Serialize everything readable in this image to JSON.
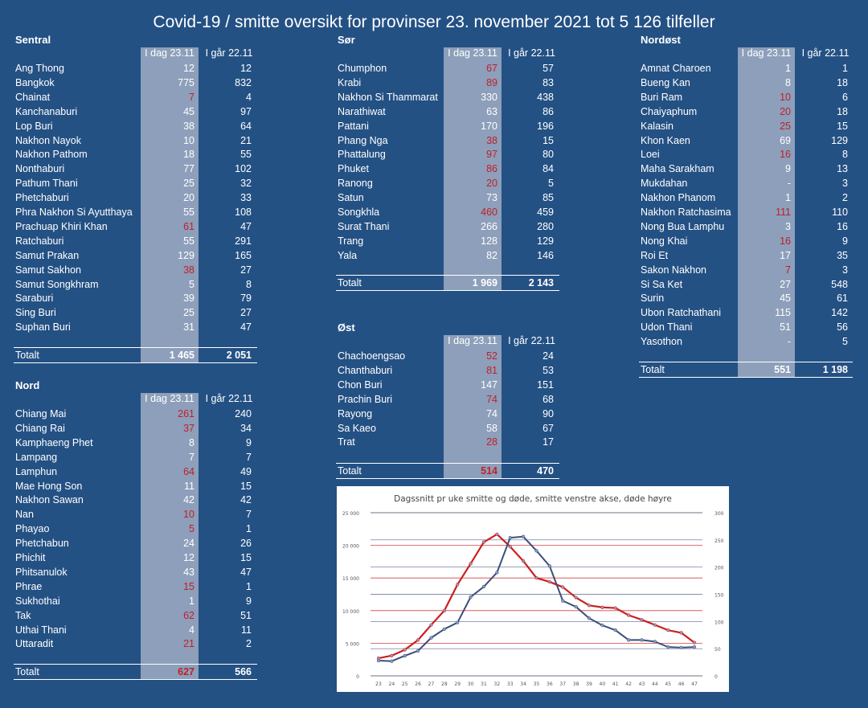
{
  "title": "Covid-19 / smitte oversikt for provinser 23. november 2021 tot 5 126 tilfeller",
  "col_today": "I dag 23.11",
  "col_yesterday": "I går 22.11",
  "total_label": "Totalt",
  "highlight_color": "#c0202a",
  "regions": {
    "sentral": {
      "name": "Sentral",
      "rows": [
        {
          "name": "Ang Thong",
          "today": "12",
          "yesterday": "12",
          "up": false
        },
        {
          "name": "Bangkok",
          "today": "775",
          "yesterday": "832",
          "up": false
        },
        {
          "name": "Chainat",
          "today": "7",
          "yesterday": "4",
          "up": true
        },
        {
          "name": "Kanchanaburi",
          "today": "45",
          "yesterday": "97",
          "up": false
        },
        {
          "name": "Lop Buri",
          "today": "38",
          "yesterday": "64",
          "up": false
        },
        {
          "name": "Nakhon Nayok",
          "today": "10",
          "yesterday": "21",
          "up": false
        },
        {
          "name": "Nakhon Pathom",
          "today": "18",
          "yesterday": "55",
          "up": false
        },
        {
          "name": "Nonthaburi",
          "today": "77",
          "yesterday": "102",
          "up": false
        },
        {
          "name": "Pathum Thani",
          "today": "25",
          "yesterday": "32",
          "up": false
        },
        {
          "name": "Phetchaburi",
          "today": "20",
          "yesterday": "33",
          "up": false
        },
        {
          "name": "Phra Nakhon Si Ayutthaya",
          "today": "55",
          "yesterday": "108",
          "up": false
        },
        {
          "name": "Prachuap Khiri Khan",
          "today": "61",
          "yesterday": "47",
          "up": true
        },
        {
          "name": "Ratchaburi",
          "today": "55",
          "yesterday": "291",
          "up": false
        },
        {
          "name": "Samut Prakan",
          "today": "129",
          "yesterday": "165",
          "up": false
        },
        {
          "name": "Samut Sakhon",
          "today": "38",
          "yesterday": "27",
          "up": true
        },
        {
          "name": "Samut Songkhram",
          "today": "5",
          "yesterday": "8",
          "up": false
        },
        {
          "name": "Saraburi",
          "today": "39",
          "yesterday": "79",
          "up": false
        },
        {
          "name": "Sing Buri",
          "today": "25",
          "yesterday": "27",
          "up": false
        },
        {
          "name": "Suphan Buri",
          "today": "31",
          "yesterday": "47",
          "up": false
        }
      ],
      "total_today": "1 465",
      "total_yesterday": "2 051",
      "total_up": false
    },
    "nord": {
      "name": "Nord",
      "rows": [
        {
          "name": "Chiang Mai",
          "today": "261",
          "yesterday": "240",
          "up": true
        },
        {
          "name": "Chiang Rai",
          "today": "37",
          "yesterday": "34",
          "up": true
        },
        {
          "name": "Kamphaeng Phet",
          "today": "8",
          "yesterday": "9",
          "up": false
        },
        {
          "name": "Lampang",
          "today": "7",
          "yesterday": "7",
          "up": false
        },
        {
          "name": "Lamphun",
          "today": "64",
          "yesterday": "49",
          "up": true
        },
        {
          "name": "Mae Hong Son",
          "today": "11",
          "yesterday": "15",
          "up": false
        },
        {
          "name": "Nakhon Sawan",
          "today": "42",
          "yesterday": "42",
          "up": false
        },
        {
          "name": "Nan",
          "today": "10",
          "yesterday": "7",
          "up": true
        },
        {
          "name": "Phayao",
          "today": "5",
          "yesterday": "1",
          "up": true
        },
        {
          "name": "Phetchabun",
          "today": "24",
          "yesterday": "26",
          "up": false
        },
        {
          "name": "Phichit",
          "today": "12",
          "yesterday": "15",
          "up": false
        },
        {
          "name": "Phitsanulok",
          "today": "43",
          "yesterday": "47",
          "up": false
        },
        {
          "name": "Phrae",
          "today": "15",
          "yesterday": "1",
          "up": true
        },
        {
          "name": "Sukhothai",
          "today": "1",
          "yesterday": "9",
          "up": false
        },
        {
          "name": "Tak",
          "today": "62",
          "yesterday": "51",
          "up": true
        },
        {
          "name": "Uthai Thani",
          "today": "4",
          "yesterday": "11",
          "up": false
        },
        {
          "name": "Uttaradit",
          "today": "21",
          "yesterday": "2",
          "up": true
        }
      ],
      "total_today": "627",
      "total_yesterday": "566",
      "total_up": true
    },
    "sor": {
      "name": "Sør",
      "rows": [
        {
          "name": "Chumphon",
          "today": "67",
          "yesterday": "57",
          "up": true
        },
        {
          "name": "Krabi",
          "today": "89",
          "yesterday": "83",
          "up": true
        },
        {
          "name": "Nakhon Si Thammarat",
          "today": "330",
          "yesterday": "438",
          "up": false
        },
        {
          "name": "Narathiwat",
          "today": "63",
          "yesterday": "86",
          "up": false
        },
        {
          "name": "Pattani",
          "today": "170",
          "yesterday": "196",
          "up": false
        },
        {
          "name": "Phang Nga",
          "today": "38",
          "yesterday": "15",
          "up": true
        },
        {
          "name": "Phattalung",
          "today": "97",
          "yesterday": "80",
          "up": true
        },
        {
          "name": "Phuket",
          "today": "86",
          "yesterday": "84",
          "up": true
        },
        {
          "name": "Ranong",
          "today": "20",
          "yesterday": "5",
          "up": true
        },
        {
          "name": "Satun",
          "today": "73",
          "yesterday": "85",
          "up": false
        },
        {
          "name": "Songkhla",
          "today": "460",
          "yesterday": "459",
          "up": true
        },
        {
          "name": "Surat Thani",
          "today": "266",
          "yesterday": "280",
          "up": false
        },
        {
          "name": "Trang",
          "today": "128",
          "yesterday": "129",
          "up": false
        },
        {
          "name": "Yala",
          "today": "82",
          "yesterday": "146",
          "up": false
        }
      ],
      "total_today": "1 969",
      "total_yesterday": "2 143",
      "total_up": false
    },
    "ost": {
      "name": "Øst",
      "rows": [
        {
          "name": "Chachoengsao",
          "today": "52",
          "yesterday": "24",
          "up": true
        },
        {
          "name": "Chanthaburi",
          "today": "81",
          "yesterday": "53",
          "up": true
        },
        {
          "name": "Chon Buri",
          "today": "147",
          "yesterday": "151",
          "up": false
        },
        {
          "name": "Prachin Buri",
          "today": "74",
          "yesterday": "68",
          "up": true
        },
        {
          "name": "Rayong",
          "today": "74",
          "yesterday": "90",
          "up": false
        },
        {
          "name": "Sa Kaeo",
          "today": "58",
          "yesterday": "67",
          "up": false
        },
        {
          "name": "Trat",
          "today": "28",
          "yesterday": "17",
          "up": true
        }
      ],
      "total_today": "514",
      "total_yesterday": "470",
      "total_up": true
    },
    "nordost": {
      "name": "Nordøst",
      "rows": [
        {
          "name": "Amnat Charoen",
          "today": "1",
          "yesterday": "1",
          "up": false
        },
        {
          "name": "Bueng Kan",
          "today": "8",
          "yesterday": "18",
          "up": false
        },
        {
          "name": "Buri Ram",
          "today": "10",
          "yesterday": "6",
          "up": true
        },
        {
          "name": "Chaiyaphum",
          "today": "20",
          "yesterday": "18",
          "up": true
        },
        {
          "name": "Kalasin",
          "today": "25",
          "yesterday": "15",
          "up": true
        },
        {
          "name": "Khon Kaen",
          "today": "69",
          "yesterday": "129",
          "up": false
        },
        {
          "name": "Loei",
          "today": "16",
          "yesterday": "8",
          "up": true
        },
        {
          "name": "Maha Sarakham",
          "today": "9",
          "yesterday": "13",
          "up": false
        },
        {
          "name": "Mukdahan",
          "today": "-",
          "yesterday": "3",
          "up": false
        },
        {
          "name": "Nakhon Phanom",
          "today": "1",
          "yesterday": "2",
          "up": false
        },
        {
          "name": "Nakhon Ratchasima",
          "today": "111",
          "yesterday": "110",
          "up": true
        },
        {
          "name": "Nong Bua Lamphu",
          "today": "3",
          "yesterday": "16",
          "up": false
        },
        {
          "name": "Nong Khai",
          "today": "16",
          "yesterday": "9",
          "up": true
        },
        {
          "name": "Roi Et",
          "today": "17",
          "yesterday": "35",
          "up": false
        },
        {
          "name": "Sakon Nakhon",
          "today": "7",
          "yesterday": "3",
          "up": true
        },
        {
          "name": "Si Sa Ket",
          "today": "27",
          "yesterday": "548",
          "up": false
        },
        {
          "name": "Surin",
          "today": "45",
          "yesterday": "61",
          "up": false
        },
        {
          "name": "Ubon Ratchathani",
          "today": "115",
          "yesterday": "142",
          "up": false
        },
        {
          "name": "Udon Thani",
          "today": "51",
          "yesterday": "56",
          "up": false
        },
        {
          "name": "Yasothon",
          "today": "-",
          "yesterday": "5",
          "up": false
        }
      ],
      "total_today": "551",
      "total_yesterday": "1 198",
      "total_up": false
    }
  },
  "chart_data": {
    "type": "line",
    "title": "Dagssnitt pr uke smitte og døde, smitte venstre akse, døde høyre",
    "x": [
      "23",
      "24",
      "25",
      "26",
      "27",
      "28",
      "29",
      "30",
      "31",
      "32",
      "33",
      "34",
      "35",
      "36",
      "37",
      "38",
      "39",
      "40",
      "41",
      "42",
      "43",
      "44",
      "45",
      "46",
      "47"
    ],
    "ylim_left": [
      0,
      25000
    ],
    "yticks_left": [
      "0",
      "5 000",
      "10 000",
      "15 000",
      "20 000",
      "25 000"
    ],
    "ylim_right": [
      0,
      300
    ],
    "yticks_right": [
      "0",
      "50",
      "100",
      "150",
      "200",
      "250",
      "300"
    ],
    "series": [
      {
        "axis": "left",
        "color": "#cc1f1f",
        "values": [
          2700,
          3100,
          4000,
          5500,
          7800,
          10000,
          14000,
          17200,
          20500,
          21700,
          19800,
          17600,
          15000,
          14400,
          13600,
          12000,
          10800,
          10500,
          10400,
          9300,
          8600,
          7800,
          7000,
          6600,
          5100
        ]
      },
      {
        "axis": "right",
        "color": "#3a4f7a",
        "values": [
          28,
          27,
          37,
          46,
          70,
          86,
          98,
          145,
          164,
          190,
          254,
          256,
          230,
          202,
          138,
          127,
          106,
          93,
          84,
          66,
          66,
          63,
          53,
          52,
          53
        ]
      }
    ],
    "grid": true
  }
}
